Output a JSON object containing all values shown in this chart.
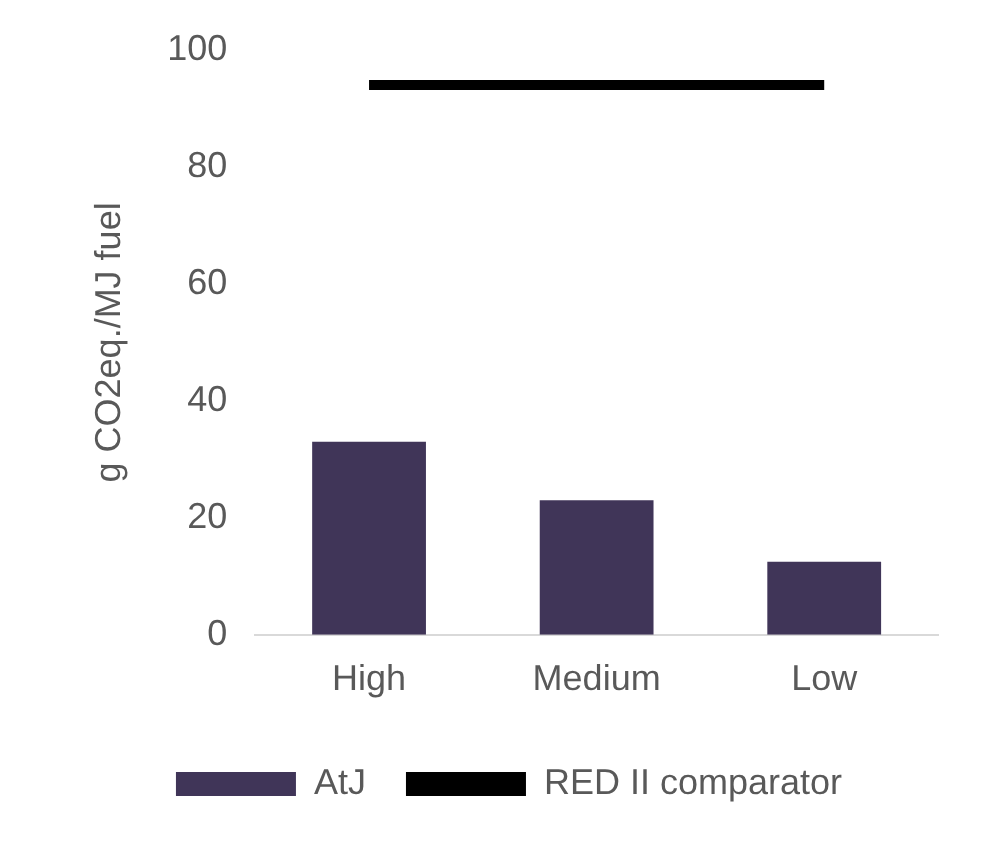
{
  "chart_data": {
    "type": "bar",
    "ylabel": "g CO2eq./MJ fuel",
    "categories": [
      "High",
      "Medium",
      "Low"
    ],
    "series": [
      {
        "name": "AtJ",
        "color": "#403558",
        "values": [
          33,
          23,
          12.5
        ]
      },
      {
        "name": "RED II comparator",
        "type": "line",
        "color": "#000000",
        "values": [
          94,
          94,
          94
        ]
      }
    ],
    "ylim": [
      0,
      100
    ],
    "yticks": [
      0,
      20,
      40,
      60,
      80,
      100
    ],
    "grid": false,
    "legend": "bottom",
    "marker": "none"
  }
}
